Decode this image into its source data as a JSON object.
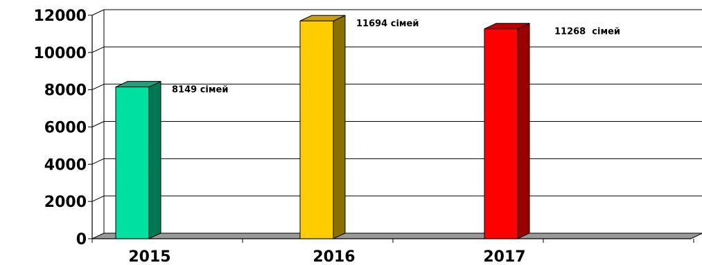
{
  "chart_data": {
    "type": "bar",
    "categories": [
      "2015",
      "2016",
      "2017"
    ],
    "values": [
      8149,
      11694,
      11268
    ],
    "data_labels": [
      "8149 сімей",
      "11694 сімей",
      "11268  сімей"
    ],
    "ylim": [
      0,
      12000
    ],
    "yticks": [
      "0",
      "2000",
      "4000",
      "6000",
      "8000",
      "10000",
      "12000"
    ],
    "colors": {
      "bars": [
        "#00e0a0",
        "#ffcc00",
        "#ff0000"
      ],
      "bar_sides": [
        "#007755",
        "#8a7000",
        "#990000"
      ],
      "bar_tops": [
        "#22a07a",
        "#c8a000",
        "#c00000"
      ],
      "floor": "#999999",
      "grid": "#000000"
    },
    "grid": true,
    "legend": "none",
    "style": "3d-column"
  }
}
